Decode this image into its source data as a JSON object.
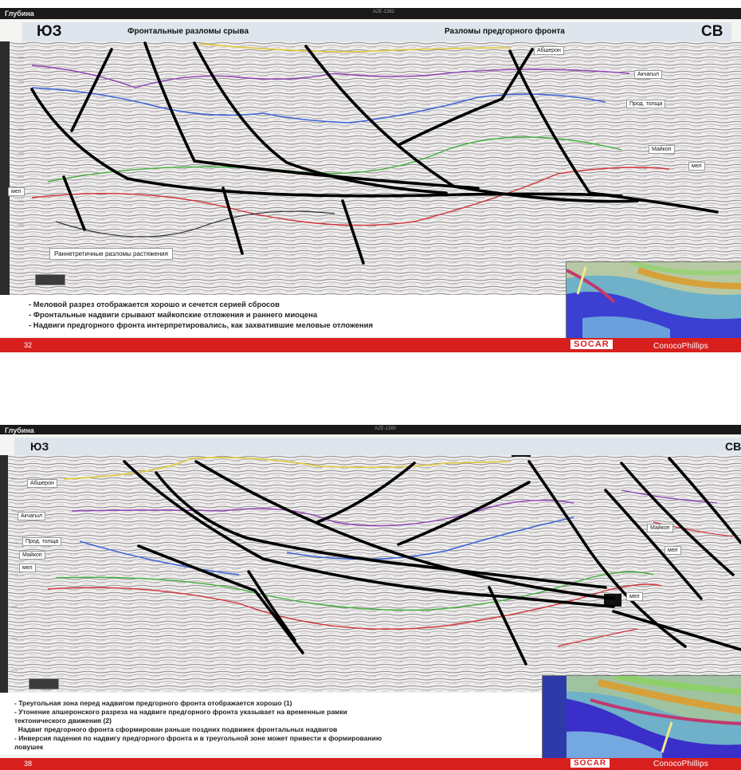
{
  "slide1": {
    "depth_label": "Глубина",
    "profile_id": "AZE-1382",
    "corner_left": "ЮЗ",
    "corner_right": "СВ",
    "title_left": "Фронтальные разломы срыва",
    "title_right": "Разломы предгорного фронта",
    "horizons": [
      "Абшерон",
      "Акчагыл",
      "Прод. толща",
      "Майкоп",
      "мел"
    ],
    "left_mel": "мел",
    "extension_label": "Раннетретичные разломы растяжения",
    "notes": [
      "- Меловой разрез отображается хорошо и сечется серией сбросов",
      "- Фронтальные надвиги срывают майкопские отложения и раннего миоцена",
      "- Надвиги предгорного фронта интерпретировались, как захватившие меловые отложения"
    ],
    "page_number": "32",
    "logo": "SOCAR",
    "brand": "ConocoPhillips"
  },
  "slide2": {
    "depth_label": "Глубина",
    "profile_id": "AZE-1380",
    "corner_left": "ЮЗ",
    "corner_right": "СВ",
    "left_horizons": [
      "Абшерон",
      "Акчагыл",
      "Прод. толща",
      "Майкоп",
      "мел"
    ],
    "right_horizons": [
      "Майкоп",
      "мел",
      "мел"
    ],
    "notes": [
      "- Треугольная зона перед надвигом предгорного фронта отображается хорошо (1)",
      "- Утонение апшеронского разреза на надвиге предгорного фронта указывает на временные рамки",
      "тектонического движения (2)",
      "  Надвиг предгорного фронта сформирован раньше поздних подвижек фронтальных надвигов",
      "- Инверсия падения по надвигу предгорного фронта и в треугольной зоне может привести к формированию",
      "ловушек"
    ],
    "page_number": "38",
    "logo": "SOCAR",
    "brand": "ConocoPhillips"
  },
  "colors": {
    "footer_red": "#d7201e",
    "abs_yellow": "#e0c93a",
    "akch_purple": "#8e3fb5",
    "prod_blue": "#3b62d8",
    "maykop_green": "#3fae3a",
    "mel_red": "#d2323a",
    "fault_black": "#000000"
  }
}
